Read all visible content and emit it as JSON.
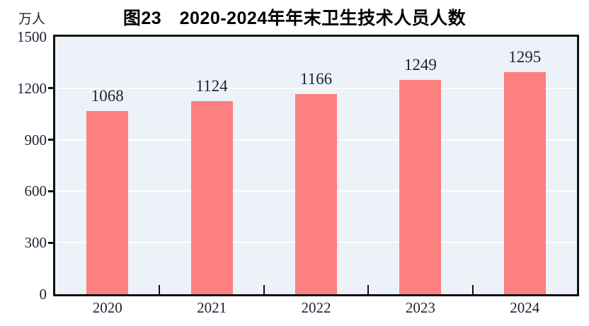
{
  "chart_data": {
    "type": "bar",
    "title": "图23　2020-2024年年末卫生技术人员人数",
    "unit_label": "万人",
    "categories": [
      "2020",
      "2021",
      "2022",
      "2023",
      "2024"
    ],
    "values": [
      1068,
      1124,
      1166,
      1249,
      1295
    ],
    "xlabel": "",
    "ylabel": "万人",
    "ylim": [
      0,
      1500
    ],
    "yticks": [
      0,
      300,
      600,
      900,
      1200,
      1500
    ],
    "grid": "horizontal white gridlines at 300-unit intervals, hidden behind bars",
    "legend": "none",
    "colors": {
      "bar": "#FC8080",
      "plot_background": "#ECF2F7",
      "axis_frame": "#111111",
      "gridline": "#FFFFFF",
      "text": "#1b2433",
      "title_text": "#000000",
      "page_background": "#FFFFFF"
    }
  }
}
